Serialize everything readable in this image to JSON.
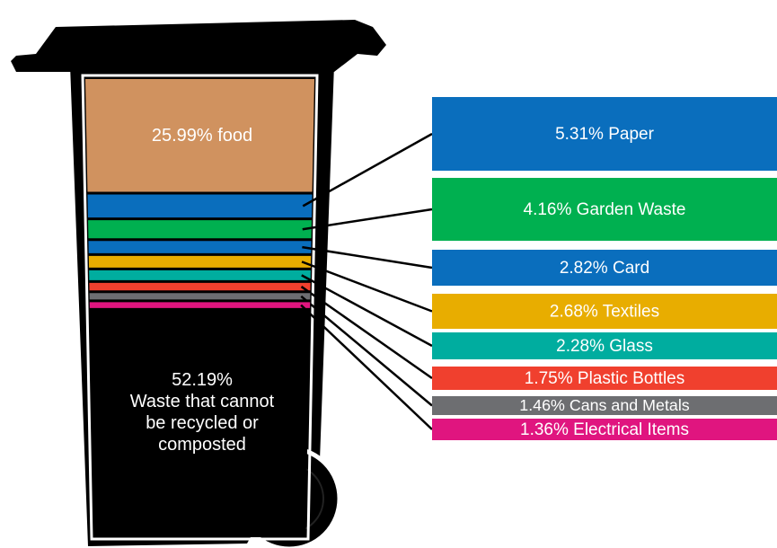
{
  "chart_data": {
    "type": "bin",
    "values": [
      25.99,
      5.31,
      4.16,
      2.82,
      2.68,
      2.28,
      1.75,
      1.46,
      1.36,
      52.19
    ],
    "value_labels": [
      "25.99% food",
      "5.31% Paper",
      "4.16% Garden Waste",
      "2.82% Card",
      "2.68% Textiles",
      "2.28% Glass",
      "1.75% Plastic Bottles",
      "1.46% Cans and Metals",
      "1.36% Electrical Items",
      "52.19%\nWaste that cannot\nbe recycled or\ncomposted"
    ],
    "colors": [
      "#d0925f",
      "#0a6ebd",
      "#00b050",
      "#0a6ebd",
      "#e8ad00",
      "#00ad9f",
      "#f0402e",
      "#6d6e71",
      "#e0157f",
      "#000000"
    ]
  }
}
